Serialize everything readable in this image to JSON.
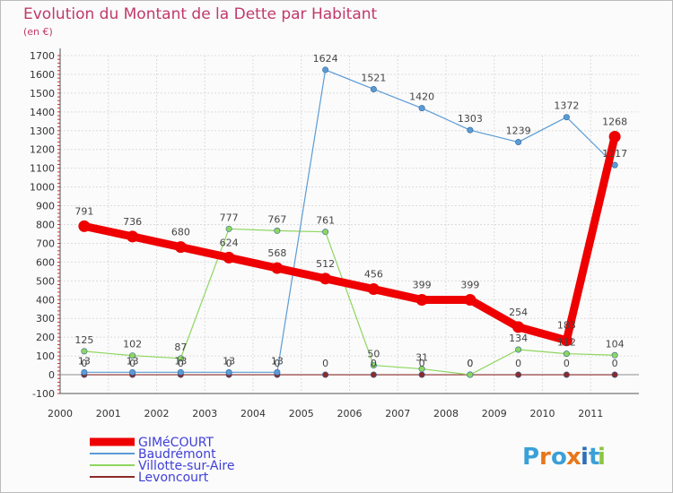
{
  "chart_data": {
    "type": "line",
    "title": "Evolution du Montant de la Dette par Habitant",
    "subtitle": "(en €)",
    "categories": [
      "2000",
      "2001",
      "2002",
      "2003",
      "2004",
      "2005",
      "2006",
      "2007",
      "2008",
      "2009",
      "2010",
      "2011"
    ],
    "yticks": [
      "-100",
      "0",
      "100",
      "200",
      "300",
      "400",
      "500",
      "600",
      "700",
      "800",
      "900",
      "1000",
      "1100",
      "1200",
      "1300",
      "1400",
      "1500",
      "1600",
      "1700"
    ],
    "ylim": [
      -100,
      1700
    ],
    "grid": true,
    "legend_position": "bottom-left",
    "series": [
      {
        "name": "GIMéCOURT",
        "color": "#ee0000",
        "values": [
          791,
          736,
          680,
          624,
          568,
          512,
          456,
          399,
          399,
          254,
          183,
          1268
        ],
        "labels": [
          "791",
          "736",
          "680",
          "624",
          "568",
          "512",
          "456",
          "399",
          "399",
          "254",
          "183",
          "1268"
        ]
      },
      {
        "name": "Baudrémont",
        "color": "#5b9bd5",
        "values": [
          13,
          13,
          13,
          13,
          13,
          1624,
          1521,
          1420,
          1303,
          1239,
          1372,
          1117
        ],
        "labels": [
          "13",
          "13",
          "13",
          "13",
          "13",
          "1624",
          "1521",
          "1420",
          "1303",
          "1239",
          "1372",
          "1117"
        ]
      },
      {
        "name": "Villotte-sur-Aire",
        "color": "#8ed65f",
        "values": [
          125,
          102,
          87,
          777,
          767,
          761,
          50,
          31,
          0,
          134,
          112,
          104
        ],
        "labels": [
          "125",
          "102",
          "87",
          "777",
          "767",
          "761",
          "50",
          "31",
          "0",
          "134",
          "112",
          "104"
        ]
      },
      {
        "name": "Levoncourt",
        "color": "#8b2b2b",
        "values": [
          0,
          0,
          0,
          0,
          0,
          0,
          0,
          0,
          0,
          0,
          0,
          0
        ],
        "labels": [
          "0",
          "0",
          "0",
          "0",
          "0",
          "0",
          "0",
          "0",
          "0",
          "0",
          "0",
          "0"
        ]
      }
    ]
  },
  "logo": {
    "letters": [
      "P",
      "r",
      "o",
      "x",
      "i",
      "t",
      "i"
    ],
    "colors": [
      "#3aa0d8",
      "#e8771a",
      "#3aa0d8",
      "#e8771a",
      "#2e6fb8",
      "#3aa0d8",
      "#8cc63f"
    ]
  }
}
